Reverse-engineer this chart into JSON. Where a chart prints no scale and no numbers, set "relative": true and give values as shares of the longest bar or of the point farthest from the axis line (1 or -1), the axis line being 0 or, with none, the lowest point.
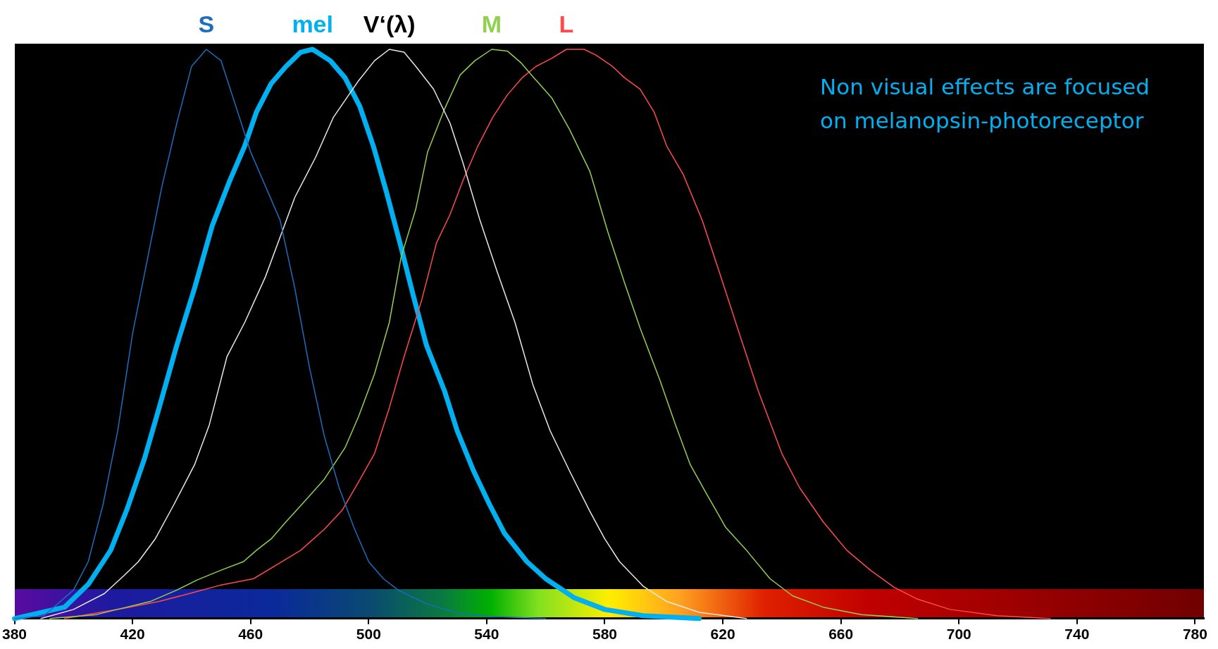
{
  "chart_data": {
    "type": "line",
    "relative": true,
    "legend": false,
    "grid": false,
    "marker": "none",
    "line_style": "solid",
    "tick_labels": "x",
    "xlim": [
      380,
      783
    ],
    "xticks": [
      380,
      420,
      460,
      500,
      540,
      580,
      620,
      660,
      700,
      740,
      780
    ],
    "annotations": [
      "Non visual effects are focused\non melanopsin-photoreceptor"
    ],
    "series": [
      {
        "name": "S",
        "color": "#1a6ebd",
        "x": [
          380,
          390,
          400,
          405,
          410,
          415,
          420,
          425,
          430,
          435,
          440,
          445,
          450,
          455,
          460,
          465,
          470,
          475,
          480,
          485,
          490,
          495,
          500,
          505,
          510,
          520,
          530,
          540,
          560
        ],
        "values": [
          0,
          0.005,
          0.05,
          0.1,
          0.2,
          0.33,
          0.5,
          0.63,
          0.76,
          0.87,
          0.97,
          1.0,
          0.98,
          0.9,
          0.82,
          0.76,
          0.7,
          0.58,
          0.44,
          0.32,
          0.23,
          0.16,
          0.1,
          0.07,
          0.05,
          0.025,
          0.01,
          0.004,
          0
        ]
      },
      {
        "name": "mel",
        "color": "#00b0f0",
        "x": [
          380,
          397,
          405,
          412.6,
          418,
          424,
          429,
          435,
          441,
          447,
          453,
          458,
          462,
          467,
          472,
          477,
          481,
          487,
          492,
          497,
          501.6,
          506,
          510.6,
          515,
          519.6,
          525.7,
          530,
          535.5,
          541,
          546,
          553.6,
          560,
          569.5,
          580,
          593,
          612
        ],
        "values": [
          0,
          0.02,
          0.06,
          0.12,
          0.19,
          0.28,
          0.37,
          0.48,
          0.58,
          0.69,
          0.77,
          0.83,
          0.89,
          0.94,
          0.97,
          0.995,
          1.0,
          0.98,
          0.95,
          0.9,
          0.83,
          0.75,
          0.66,
          0.57,
          0.48,
          0.4,
          0.33,
          0.26,
          0.2,
          0.15,
          0.1,
          0.07,
          0.037,
          0.016,
          0.005,
          0
        ]
      },
      {
        "name": "V‘(λ)",
        "color": "#e8e8e8",
        "x": [
          389,
          400,
          410.5,
          417,
          422,
          427.7,
          434,
          441,
          446,
          452,
          458,
          465,
          470,
          475,
          482,
          488,
          496.6,
          502,
          507,
          512,
          516,
          522,
          527.6,
          532,
          537.7,
          543.5,
          549.6,
          555.7,
          561.5,
          568,
          574.8,
          580,
          585,
          593,
          601,
          612,
          628
        ],
        "values": [
          0,
          0.016,
          0.044,
          0.075,
          0.1,
          0.14,
          0.2,
          0.27,
          0.34,
          0.46,
          0.52,
          0.6,
          0.67,
          0.74,
          0.81,
          0.88,
          0.945,
          0.98,
          1.0,
          0.995,
          0.97,
          0.93,
          0.87,
          0.8,
          0.7,
          0.61,
          0.52,
          0.41,
          0.33,
          0.26,
          0.19,
          0.14,
          0.1,
          0.057,
          0.03,
          0.011,
          0
        ]
      },
      {
        "name": "M",
        "color": "#92d050",
        "x": [
          392,
          407.8,
          418,
          426,
          435,
          442,
          450,
          457.6,
          462,
          467,
          472,
          479,
          485,
          492,
          496.6,
          502,
          507,
          511,
          516,
          520,
          525.7,
          531,
          536,
          541.7,
          547,
          551.5,
          556,
          562,
          568,
          575,
          581,
          586.7,
          592,
          598.6,
          604,
          609,
          614.4,
          621,
          628,
          636,
          643.6,
          654,
          667,
          686
        ],
        "values": [
          0,
          0.007,
          0.02,
          0.03,
          0.05,
          0.068,
          0.085,
          0.1,
          0.12,
          0.14,
          0.17,
          0.21,
          0.245,
          0.3,
          0.355,
          0.43,
          0.52,
          0.635,
          0.72,
          0.82,
          0.895,
          0.955,
          0.98,
          1.0,
          0.997,
          0.977,
          0.95,
          0.915,
          0.86,
          0.785,
          0.68,
          0.59,
          0.51,
          0.42,
          0.34,
          0.27,
          0.22,
          0.16,
          0.12,
          0.07,
          0.04,
          0.02,
          0.007,
          0
        ]
      },
      {
        "name": "L",
        "color": "#ff4a4a",
        "x": [
          397,
          417,
          429,
          440,
          450,
          461,
          469,
          477,
          485,
          491,
          496.6,
          502,
          507,
          512,
          518,
          523,
          527.6,
          532,
          537,
          542,
          547,
          552,
          556.7,
          562,
          567,
          573,
          577,
          582.6,
          586.7,
          592,
          596.7,
          601,
          606.6,
          613,
          620,
          625,
          632,
          640,
          646,
          654,
          662,
          670,
          678,
          686,
          697,
          713,
          731
        ],
        "values": [
          0,
          0.018,
          0.03,
          0.045,
          0.059,
          0.07,
          0.095,
          0.12,
          0.157,
          0.19,
          0.24,
          0.29,
          0.37,
          0.46,
          0.56,
          0.66,
          0.71,
          0.77,
          0.83,
          0.88,
          0.92,
          0.95,
          0.97,
          0.984,
          1.0,
          1.0,
          0.99,
          0.97,
          0.95,
          0.93,
          0.89,
          0.83,
          0.78,
          0.7,
          0.59,
          0.51,
          0.4,
          0.29,
          0.23,
          0.17,
          0.12,
          0.085,
          0.055,
          0.034,
          0.016,
          0.005,
          0
        ]
      }
    ]
  }
}
